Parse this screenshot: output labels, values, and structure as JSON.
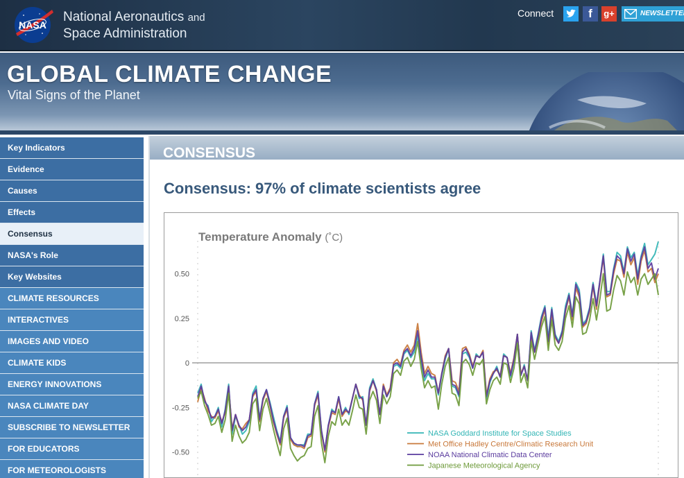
{
  "header": {
    "agency_line1": "National Aeronautics",
    "agency_and": "and",
    "agency_line2": "Space Administration",
    "connect_label": "Connect",
    "newsletter_label": "NEWSLETTER",
    "logo_text": "NASA"
  },
  "banner": {
    "title": "GLOBAL CLIMATE CHANGE",
    "subtitle": "Vital Signs of the Planet"
  },
  "sidebar": {
    "items": [
      {
        "label": "Key Indicators",
        "style": "normal"
      },
      {
        "label": "Evidence",
        "style": "normal"
      },
      {
        "label": "Causes",
        "style": "normal"
      },
      {
        "label": "Effects",
        "style": "normal"
      },
      {
        "label": "Consensus",
        "style": "active"
      },
      {
        "label": "NASA's Role",
        "style": "normal"
      },
      {
        "label": "Key Websites",
        "style": "normal"
      },
      {
        "label": "CLIMATE RESOURCES",
        "style": "upper"
      },
      {
        "label": "INTERACTIVES",
        "style": "upper"
      },
      {
        "label": "IMAGES AND VIDEO",
        "style": "upper"
      },
      {
        "label": "CLIMATE KIDS",
        "style": "upper"
      },
      {
        "label": "ENERGY INNOVATIONS",
        "style": "upper"
      },
      {
        "label": "NASA CLIMATE DAY",
        "style": "upper"
      },
      {
        "label": "SUBSCRIBE TO NEWSLETTER",
        "style": "upper"
      },
      {
        "label": "FOR EDUCATORS",
        "style": "upper"
      },
      {
        "label": "FOR METEOROLOGISTS",
        "style": "upper"
      }
    ]
  },
  "main": {
    "section_title": "CONSENSUS",
    "heading": "Consensus: 97% of climate scientists agree"
  },
  "chart_data": {
    "type": "line",
    "title": "Temperature Anomaly",
    "unit": "(˚C)",
    "ylim": [
      -0.6,
      0.68
    ],
    "yticks": [
      0.5,
      0.25,
      0,
      -0.25,
      -0.5
    ],
    "ytick_labels": [
      "0.50",
      "0.25",
      "0",
      "-0.25",
      "-0.50"
    ],
    "x_start": 1880,
    "x_end": 2014,
    "series": [
      {
        "name": "NASA Goddard Institute for Space Studies",
        "color": "#33b5b5",
        "values": [
          -0.17,
          -0.12,
          -0.22,
          -0.24,
          -0.33,
          -0.3,
          -0.25,
          -0.36,
          -0.26,
          -0.12,
          -0.4,
          -0.3,
          -0.35,
          -0.4,
          -0.38,
          -0.33,
          -0.17,
          -0.13,
          -0.31,
          -0.2,
          -0.15,
          -0.22,
          -0.3,
          -0.38,
          -0.44,
          -0.3,
          -0.24,
          -0.42,
          -0.45,
          -0.47,
          -0.46,
          -0.46,
          -0.4,
          -0.4,
          -0.23,
          -0.16,
          -0.38,
          -0.49,
          -0.35,
          -0.26,
          -0.28,
          -0.19,
          -0.29,
          -0.25,
          -0.29,
          -0.2,
          -0.12,
          -0.2,
          -0.19,
          -0.35,
          -0.14,
          -0.09,
          -0.15,
          -0.29,
          -0.13,
          -0.19,
          -0.15,
          -0.02,
          -0.01,
          -0.03,
          0.05,
          0.07,
          0.03,
          0.06,
          0.15,
          0.01,
          -0.1,
          -0.06,
          -0.09,
          -0.09,
          -0.18,
          -0.07,
          0.02,
          0.08,
          -0.13,
          -0.14,
          -0.19,
          0.05,
          0.06,
          0.03,
          -0.03,
          0.05,
          0.03,
          0.06,
          -0.2,
          -0.11,
          -0.06,
          -0.02,
          -0.08,
          0.05,
          0.03,
          -0.08,
          0.01,
          0.16,
          -0.07,
          -0.01,
          -0.1,
          0.18,
          0.07,
          0.16,
          0.26,
          0.32,
          0.14,
          0.31,
          0.16,
          0.12,
          0.18,
          0.32,
          0.39,
          0.27,
          0.45,
          0.41,
          0.22,
          0.24,
          0.31,
          0.45,
          0.33,
          0.46,
          0.61,
          0.4,
          0.4,
          0.53,
          0.62,
          0.6,
          0.51,
          0.65,
          0.59,
          0.62,
          0.49,
          0.6,
          0.67,
          0.55,
          0.58,
          0.61,
          0.68
        ]
      },
      {
        "name": "Met Office Hadley Centre/Climatic Research Unit",
        "color": "#c8783a",
        "values": [
          -0.22,
          -0.14,
          -0.2,
          -0.27,
          -0.3,
          -0.31,
          -0.27,
          -0.33,
          -0.28,
          -0.14,
          -0.37,
          -0.29,
          -0.36,
          -0.37,
          -0.34,
          -0.32,
          -0.19,
          -0.16,
          -0.33,
          -0.21,
          -0.16,
          -0.24,
          -0.33,
          -0.4,
          -0.46,
          -0.31,
          -0.26,
          -0.43,
          -0.46,
          -0.47,
          -0.47,
          -0.48,
          -0.42,
          -0.41,
          -0.24,
          -0.18,
          -0.39,
          -0.5,
          -0.36,
          -0.28,
          -0.29,
          -0.2,
          -0.3,
          -0.27,
          -0.28,
          -0.2,
          -0.12,
          -0.18,
          -0.21,
          -0.35,
          -0.16,
          -0.1,
          -0.16,
          -0.29,
          -0.12,
          -0.18,
          -0.14,
          0.0,
          0.02,
          -0.01,
          0.07,
          0.1,
          0.06,
          0.1,
          0.22,
          0.06,
          -0.06,
          -0.02,
          -0.06,
          -0.07,
          -0.17,
          -0.06,
          0.04,
          0.08,
          -0.1,
          -0.11,
          -0.16,
          0.08,
          0.09,
          0.05,
          -0.02,
          0.04,
          0.03,
          0.07,
          -0.18,
          -0.09,
          -0.05,
          -0.04,
          -0.07,
          0.04,
          0.03,
          -0.06,
          0.03,
          0.16,
          -0.06,
          -0.02,
          -0.1,
          0.15,
          0.06,
          0.14,
          0.23,
          0.3,
          0.1,
          0.28,
          0.14,
          0.11,
          0.16,
          0.29,
          0.37,
          0.24,
          0.42,
          0.37,
          0.2,
          0.22,
          0.29,
          0.43,
          0.3,
          0.45,
          0.59,
          0.37,
          0.38,
          0.5,
          0.58,
          0.57,
          0.48,
          0.62,
          0.55,
          0.59,
          0.44,
          0.57,
          0.63,
          0.51,
          0.53,
          0.45,
          0.5
        ]
      },
      {
        "name": "NOAA National Climatic Data Center",
        "color": "#5a3b9e",
        "values": [
          -0.19,
          -0.13,
          -0.21,
          -0.25,
          -0.31,
          -0.3,
          -0.26,
          -0.34,
          -0.27,
          -0.13,
          -0.38,
          -0.29,
          -0.35,
          -0.38,
          -0.36,
          -0.32,
          -0.18,
          -0.15,
          -0.32,
          -0.2,
          -0.15,
          -0.23,
          -0.32,
          -0.39,
          -0.45,
          -0.3,
          -0.25,
          -0.42,
          -0.45,
          -0.46,
          -0.46,
          -0.47,
          -0.41,
          -0.4,
          -0.23,
          -0.17,
          -0.38,
          -0.49,
          -0.35,
          -0.27,
          -0.28,
          -0.19,
          -0.29,
          -0.26,
          -0.28,
          -0.2,
          -0.12,
          -0.19,
          -0.2,
          -0.35,
          -0.15,
          -0.1,
          -0.15,
          -0.29,
          -0.13,
          -0.19,
          -0.15,
          -0.01,
          0.0,
          -0.02,
          0.06,
          0.08,
          0.04,
          0.08,
          0.18,
          0.03,
          -0.08,
          -0.04,
          -0.08,
          -0.08,
          -0.17,
          -0.06,
          0.03,
          0.08,
          -0.12,
          -0.13,
          -0.18,
          0.06,
          0.08,
          0.04,
          -0.03,
          0.04,
          0.03,
          0.06,
          -0.19,
          -0.1,
          -0.06,
          -0.03,
          -0.08,
          0.04,
          0.03,
          -0.07,
          0.02,
          0.16,
          -0.07,
          -0.02,
          -0.1,
          0.17,
          0.06,
          0.15,
          0.25,
          0.31,
          0.12,
          0.3,
          0.15,
          0.11,
          0.17,
          0.3,
          0.38,
          0.26,
          0.44,
          0.39,
          0.21,
          0.23,
          0.3,
          0.44,
          0.32,
          0.46,
          0.6,
          0.38,
          0.39,
          0.52,
          0.6,
          0.58,
          0.5,
          0.64,
          0.57,
          0.61,
          0.47,
          0.59,
          0.65,
          0.53,
          0.56,
          0.47,
          0.53
        ]
      },
      {
        "name": "Japanese Meteorological Agency",
        "color": "#6e9a3a",
        "values": [
          -0.2,
          -0.16,
          -0.24,
          -0.29,
          -0.35,
          -0.34,
          -0.3,
          -0.39,
          -0.32,
          -0.17,
          -0.44,
          -0.35,
          -0.41,
          -0.45,
          -0.43,
          -0.39,
          -0.23,
          -0.2,
          -0.38,
          -0.26,
          -0.2,
          -0.28,
          -0.37,
          -0.45,
          -0.52,
          -0.37,
          -0.31,
          -0.48,
          -0.52,
          -0.55,
          -0.53,
          -0.52,
          -0.48,
          -0.47,
          -0.3,
          -0.24,
          -0.45,
          -0.56,
          -0.41,
          -0.33,
          -0.35,
          -0.26,
          -0.35,
          -0.32,
          -0.35,
          -0.27,
          -0.18,
          -0.25,
          -0.26,
          -0.4,
          -0.21,
          -0.16,
          -0.21,
          -0.34,
          -0.18,
          -0.23,
          -0.19,
          -0.06,
          -0.04,
          -0.07,
          0.01,
          0.03,
          -0.02,
          0.02,
          0.12,
          -0.03,
          -0.14,
          -0.1,
          -0.14,
          -0.13,
          -0.26,
          -0.12,
          -0.02,
          0.03,
          -0.17,
          -0.18,
          -0.24,
          0.0,
          0.02,
          -0.01,
          -0.07,
          0.0,
          -0.01,
          0.02,
          -0.23,
          -0.15,
          -0.1,
          -0.08,
          -0.12,
          0.0,
          -0.01,
          -0.11,
          -0.03,
          0.11,
          -0.11,
          -0.06,
          -0.14,
          0.12,
          0.02,
          0.11,
          0.2,
          0.26,
          0.07,
          0.24,
          0.1,
          0.07,
          0.12,
          0.25,
          0.32,
          0.2,
          0.37,
          0.33,
          0.16,
          0.17,
          0.24,
          0.36,
          0.24,
          0.36,
          0.5,
          0.29,
          0.3,
          0.41,
          0.49,
          0.46,
          0.38,
          0.51,
          0.45,
          0.48,
          0.38,
          0.47,
          0.5,
          0.44,
          0.47,
          0.5,
          0.38
        ]
      }
    ]
  }
}
